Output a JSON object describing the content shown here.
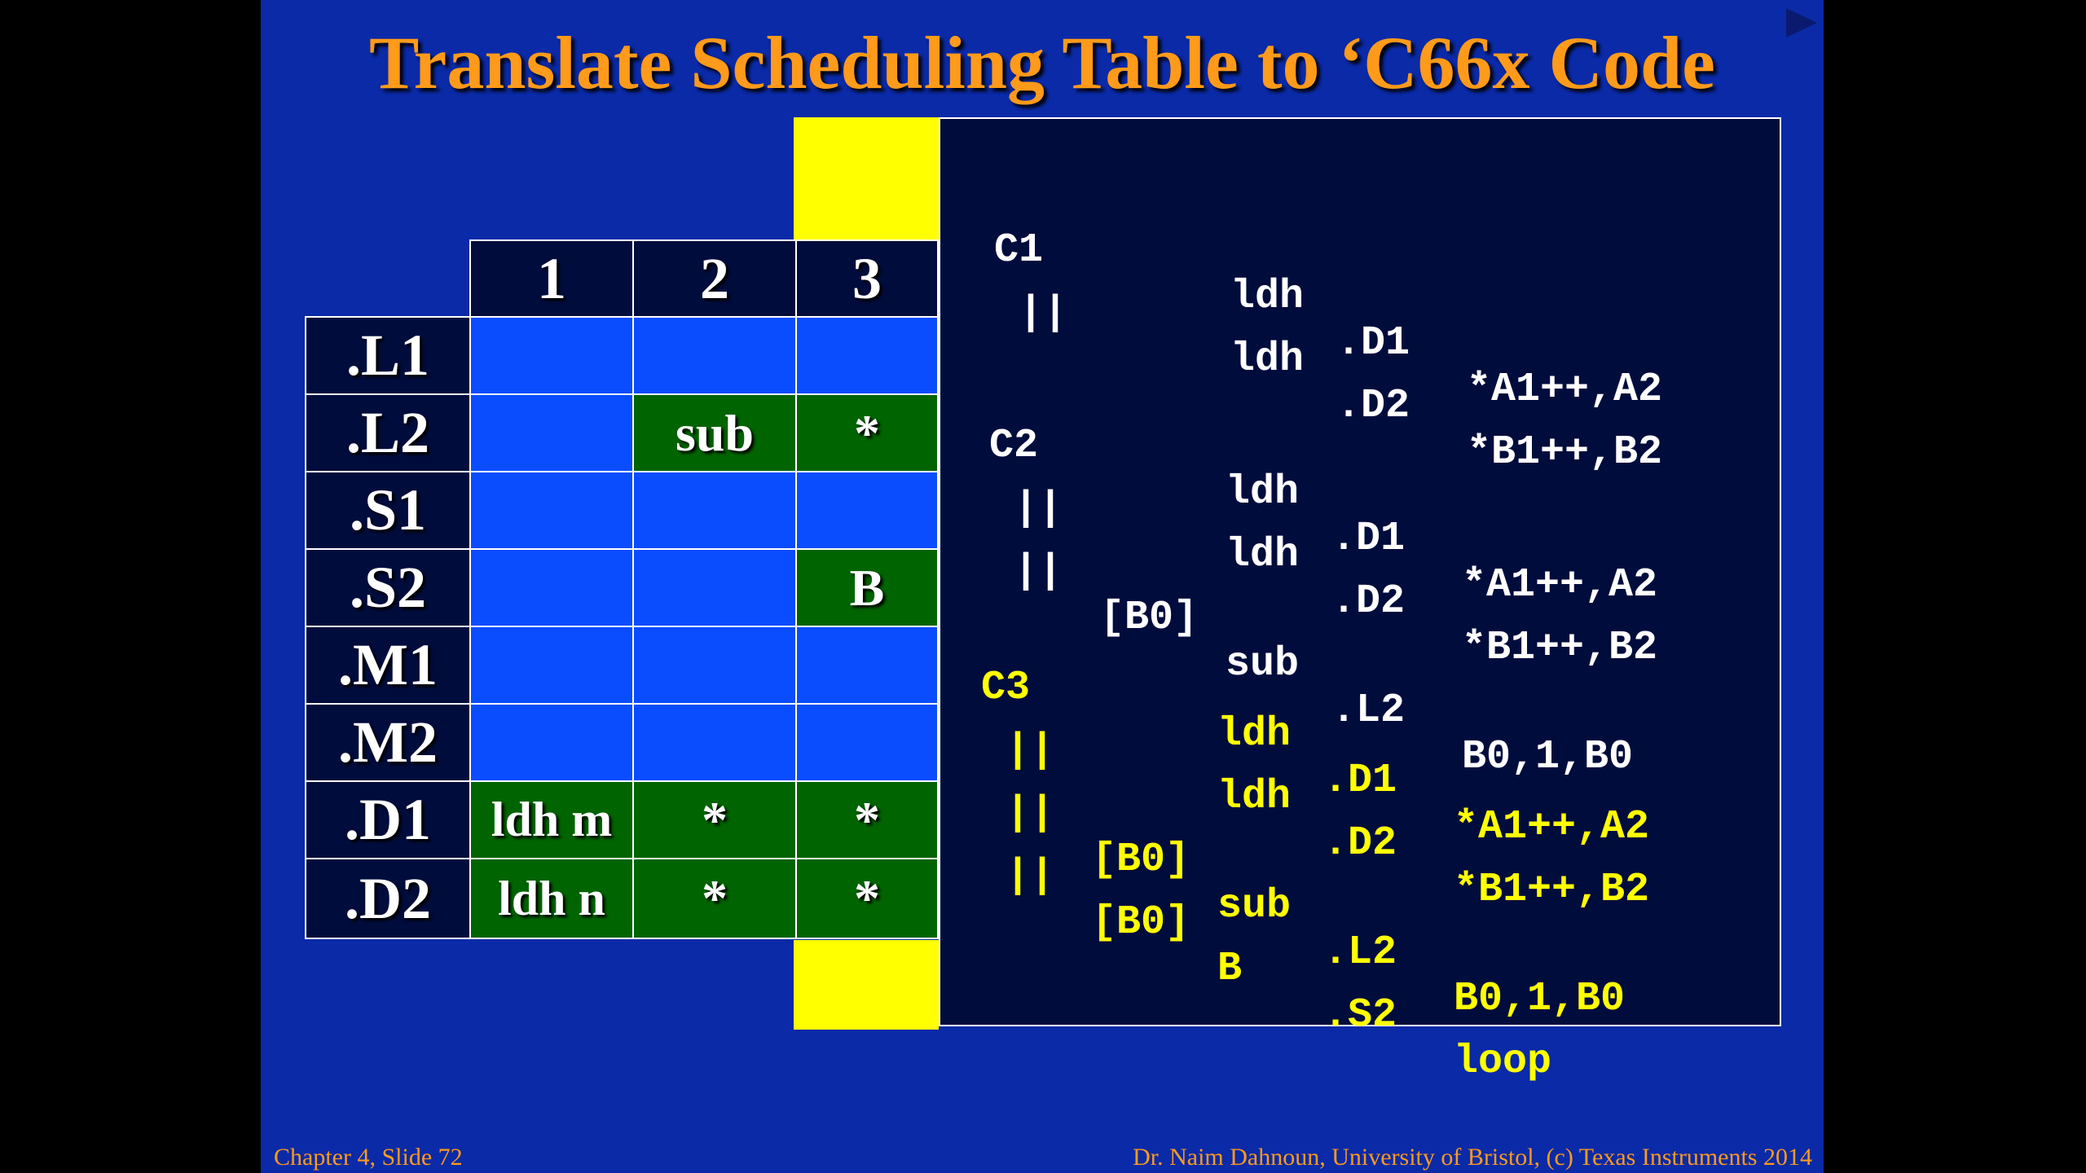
{
  "title": "Translate Scheduling Table to ‘C66x Code",
  "table": {
    "columns": [
      "1",
      "2",
      "3"
    ],
    "rows": [
      {
        "unit": ".L1",
        "cells": [
          "",
          "",
          ""
        ]
      },
      {
        "unit": ".L2",
        "cells": [
          "",
          "sub",
          "*"
        ]
      },
      {
        "unit": ".S1",
        "cells": [
          "",
          "",
          ""
        ]
      },
      {
        "unit": ".S2",
        "cells": [
          "",
          "",
          "B"
        ]
      },
      {
        "unit": ".M1",
        "cells": [
          "",
          "",
          ""
        ]
      },
      {
        "unit": ".M2",
        "cells": [
          "",
          "",
          ""
        ]
      },
      {
        "unit": ".D1",
        "cells": [
          "ldh m",
          "*",
          "*"
        ]
      },
      {
        "unit": ".D2",
        "cells": [
          "ldh n",
          "*",
          "*"
        ]
      }
    ]
  },
  "code": {
    "c1": {
      "l1": {
        "label": "C1",
        "op": "ldh",
        "unit": ".D1",
        "args": "*A1++,A2"
      },
      "l2": {
        "label": "||",
        "op": "ldh",
        "unit": ".D2",
        "args": "*B1++,B2"
      }
    },
    "c2": {
      "l1": {
        "label": "C2",
        "op": "ldh",
        "unit": ".D1",
        "args": "*A1++,A2"
      },
      "l2": {
        "label": "||",
        "op": "ldh",
        "unit": ".D2",
        "args": "*B1++,B2"
      },
      "l3": {
        "label": "||",
        "cond": "[B0]",
        "op": "sub",
        "unit": ".L2",
        "args": "B0,1,B0"
      }
    },
    "c3": {
      "l1": {
        "label": "C3",
        "op": "ldh",
        "unit": ".D1",
        "args": "*A1++,A2"
      },
      "l2": {
        "label": "||",
        "op": "ldh",
        "unit": ".D2",
        "args": "*B1++,B2"
      },
      "l3": {
        "label": "||",
        "cond": "[B0]",
        "op": "sub",
        "unit": ".L2",
        "args": "B0,1,B0"
      },
      "l4": {
        "label": "||",
        "cond": "[B0]",
        "op": "B",
        "unit": ".S2",
        "args": "loop"
      }
    }
  },
  "footer": {
    "left": "Chapter 4, Slide 72",
    "right": "Dr. Naim Dahnoun, University of Bristol,  (c) Texas Instruments 2014"
  },
  "colors": {
    "slide_bg": "#0a2aa8",
    "title": "#ff9a1a",
    "cell_blue": "#0a4cff",
    "cell_green": "#006400",
    "highlight": "#ffff00",
    "code_panel": "#000c3c"
  },
  "icons": {
    "next": "play-triangle-icon"
  }
}
